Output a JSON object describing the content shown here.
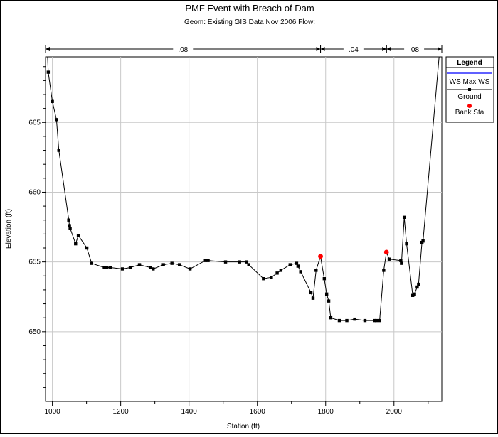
{
  "chart_data": {
    "type": "line",
    "title": "PMF Event with Breach of Dam",
    "subtitle": "Geom: Existing GIS Data Nov 2006    Flow:",
    "xlabel": "Station (ft)",
    "ylabel": "Elevation (ft)",
    "xlim": [
      980,
      2140
    ],
    "ylim": [
      645,
      669.7
    ],
    "xticks": [
      1000,
      1200,
      1400,
      1600,
      1800,
      2000
    ],
    "yticks": [
      650,
      655,
      660,
      665
    ],
    "grid": true,
    "manning": [
      {
        "label": ".08",
        "from": 980,
        "to": 1785
      },
      {
        "label": ".04",
        "from": 1785,
        "to": 1978
      },
      {
        "label": ".08",
        "from": 1978,
        "to": 2140
      }
    ],
    "legend": {
      "title": "Legend",
      "placement": "top-right",
      "items": [
        {
          "name": "WS Max WS",
          "color": "#0000ff",
          "marker": "none"
        },
        {
          "name": "Ground",
          "color": "#000000",
          "marker": "square"
        },
        {
          "name": "Bank Sta",
          "color": "#ff0000",
          "marker": "circle"
        }
      ]
    },
    "series": [
      {
        "name": "Ground",
        "color": "#000000",
        "points": [
          [
            986,
            669.7
          ],
          [
            988,
            668.6
          ],
          [
            1000,
            666.5
          ],
          [
            1012,
            665.2
          ],
          [
            1019,
            663.0
          ],
          [
            1048,
            658.0
          ],
          [
            1050,
            657.6
          ],
          [
            1052,
            657.4
          ],
          [
            1068,
            656.3
          ],
          [
            1076,
            656.9
          ],
          [
            1101,
            656.0
          ],
          [
            1115,
            654.9
          ],
          [
            1152,
            654.6
          ],
          [
            1160,
            654.6
          ],
          [
            1170,
            654.6
          ],
          [
            1205,
            654.5
          ],
          [
            1228,
            654.6
          ],
          [
            1255,
            654.8
          ],
          [
            1287,
            654.6
          ],
          [
            1295,
            654.5
          ],
          [
            1325,
            654.8
          ],
          [
            1350,
            654.9
          ],
          [
            1372,
            654.8
          ],
          [
            1403,
            654.5
          ],
          [
            1448,
            655.1
          ],
          [
            1456,
            655.1
          ],
          [
            1507,
            655.0
          ],
          [
            1548,
            655.0
          ],
          [
            1569,
            655.0
          ],
          [
            1575,
            654.8
          ],
          [
            1618,
            653.8
          ],
          [
            1641,
            653.9
          ],
          [
            1658,
            654.2
          ],
          [
            1669,
            654.4
          ],
          [
            1696,
            654.8
          ],
          [
            1715,
            654.9
          ],
          [
            1719,
            654.7
          ],
          [
            1727,
            654.3
          ],
          [
            1757,
            652.8
          ],
          [
            1763,
            652.4
          ],
          [
            1772,
            654.4
          ],
          [
            1785,
            655.4
          ],
          [
            1796,
            653.8
          ],
          [
            1803,
            652.7
          ],
          [
            1809,
            652.2
          ],
          [
            1815,
            651.0
          ],
          [
            1840,
            650.8
          ],
          [
            1862,
            650.8
          ],
          [
            1885,
            650.9
          ],
          [
            1915,
            650.8
          ],
          [
            1943,
            650.8
          ],
          [
            1949,
            650.8
          ],
          [
            1958,
            650.8
          ],
          [
            1970,
            654.4
          ],
          [
            1978,
            655.7
          ],
          [
            1986,
            655.2
          ],
          [
            2020,
            655.1
          ],
          [
            2022,
            654.9
          ],
          [
            2030,
            658.2
          ],
          [
            2037,
            656.3
          ],
          [
            2055,
            652.6
          ],
          [
            2060,
            652.7
          ],
          [
            2068,
            653.2
          ],
          [
            2072,
            653.4
          ],
          [
            2082,
            656.4
          ],
          [
            2085,
            656.5
          ],
          [
            2132,
            669.7
          ]
        ]
      },
      {
        "name": "Bank Sta",
        "color": "#ff0000",
        "points": [
          [
            1785,
            655.4
          ],
          [
            1978,
            655.7
          ]
        ]
      }
    ]
  }
}
